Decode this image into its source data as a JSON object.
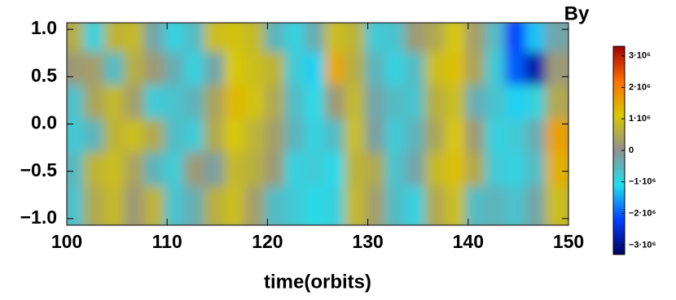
{
  "chart_data": {
    "type": "heatmap",
    "title": "By",
    "x_label": "time(orbits)",
    "x": [
      101,
      103,
      105,
      107,
      109,
      111,
      113,
      115,
      117,
      119,
      121,
      123,
      125,
      127,
      129,
      131,
      133,
      135,
      137,
      139,
      141,
      143,
      145,
      147,
      149
    ],
    "y": [
      0.89,
      0.53,
      0.18,
      -0.18,
      -0.53,
      -0.89
    ],
    "z": [
      [
        600000,
        -900000,
        700000,
        800000,
        -300000,
        -900000,
        -600000,
        900000,
        1000000,
        800000,
        -500000,
        -900000,
        -400000,
        900000,
        700000,
        -800000,
        -700000,
        200000,
        500000,
        1100000,
        300000,
        -600000,
        -2200000,
        -1300000,
        -300000
      ],
      [
        200000,
        300000,
        -600000,
        600000,
        200000,
        -400000,
        -900000,
        -300000,
        1100000,
        900000,
        700000,
        -800000,
        -1200000,
        1500000,
        600000,
        -500000,
        -900000,
        -600000,
        900000,
        1200000,
        400000,
        -800000,
        -2000000,
        -2800000,
        200000
      ],
      [
        -700000,
        400000,
        800000,
        300000,
        -800000,
        -700000,
        -500000,
        400000,
        1300000,
        1000000,
        500000,
        -600000,
        -1000000,
        200000,
        800000,
        -300000,
        -600000,
        -700000,
        600000,
        900000,
        -400000,
        -700000,
        -1200000,
        -900000,
        500000
      ],
      [
        -800000,
        -500000,
        700000,
        900000,
        500000,
        -600000,
        -800000,
        500000,
        1100000,
        700000,
        300000,
        -500000,
        -900000,
        -600000,
        900000,
        -200000,
        -800000,
        -500000,
        400000,
        1100000,
        200000,
        -900000,
        -800000,
        -400000,
        1600000
      ],
      [
        -600000,
        700000,
        900000,
        400000,
        -500000,
        -800000,
        200000,
        -200000,
        800000,
        600000,
        200000,
        -900000,
        -800000,
        -1000000,
        700000,
        500000,
        -700000,
        -300000,
        800000,
        1200000,
        500000,
        -800000,
        -900000,
        -600000,
        1400000
      ],
      [
        -700000,
        500000,
        800000,
        200000,
        700000,
        -700000,
        -400000,
        600000,
        900000,
        300000,
        -600000,
        -800000,
        -1000000,
        -900000,
        800000,
        300000,
        -600000,
        -900000,
        500000,
        900000,
        -600000,
        -500000,
        -700000,
        -300000,
        900000
      ]
    ],
    "xlim": [
      100,
      150
    ],
    "xticks": [
      100,
      110,
      120,
      130,
      140,
      150
    ],
    "ylim": [
      -1.07,
      1.07
    ],
    "yticks": [
      {
        "value": 1,
        "label": "1.0"
      },
      {
        "value": 0.5,
        "label": "0.5"
      },
      {
        "value": 0,
        "label": "0.0"
      },
      {
        "value": -0.5,
        "label": "−0.5"
      },
      {
        "value": -1,
        "label": "−1.0"
      }
    ],
    "clim": [
      -3300000,
      3300000
    ],
    "cticks": [
      {
        "value": 3000000,
        "label": "3·10⁶"
      },
      {
        "value": 2000000,
        "label": "2·10⁶"
      },
      {
        "value": 1000000,
        "label": "1·10⁶"
      },
      0,
      {
        "value": -1000000,
        "label": "−1·10⁶"
      },
      {
        "value": -2000000,
        "label": "−2·10⁶"
      },
      {
        "value": -3000000,
        "label": "−3·10⁶"
      }
    ],
    "colormap": [
      "#000060",
      "#0040ff",
      "#20e0f0",
      "#909090",
      "#d8c800",
      "#ff7000",
      "#a00000"
    ]
  }
}
